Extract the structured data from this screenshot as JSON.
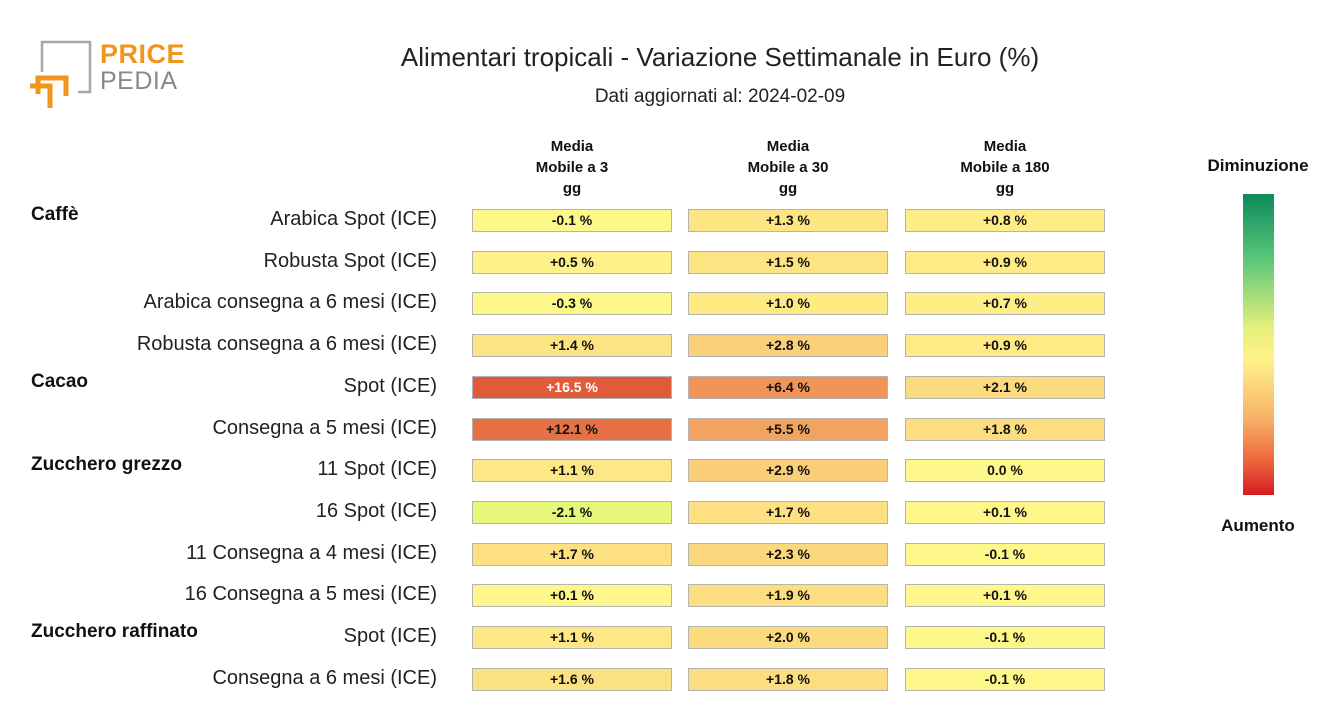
{
  "logo": {
    "word1": "PRICE",
    "word2": "PEDIA"
  },
  "title": "Alimentari tropicali - Variazione Settimanale in Euro (%)",
  "subtitle": "Dati aggiornati al: 2024-02-09",
  "chart_data": {
    "type": "table",
    "title": "Alimentari tropicali - Variazione Settimanale in Euro (%)",
    "subtitle": "Dati aggiornati al: 2024-02-09",
    "columns": [
      {
        "lines": [
          "Media",
          "Mobile a 3",
          "gg"
        ]
      },
      {
        "lines": [
          "Media",
          "Mobile a 30",
          "gg"
        ]
      },
      {
        "lines": [
          "Media",
          "Mobile a 180",
          "gg"
        ]
      }
    ],
    "groups": [
      {
        "name": "Caffè",
        "rows": [
          {
            "label": "Arabica Spot (ICE)",
            "values": [
              -0.1,
              1.3,
              0.8
            ],
            "display": [
              "-0.1 %",
              "+1.3 %",
              "+0.8 %"
            ]
          },
          {
            "label": "Robusta Spot (ICE)",
            "values": [
              0.5,
              1.5,
              0.9
            ],
            "display": [
              "+0.5 %",
              "+1.5 %",
              "+0.9 %"
            ]
          },
          {
            "label": "Arabica consegna a 6 mesi (ICE)",
            "values": [
              -0.3,
              1.0,
              0.7
            ],
            "display": [
              "-0.3 %",
              "+1.0 %",
              "+0.7 %"
            ]
          },
          {
            "label": "Robusta consegna a 6 mesi (ICE)",
            "values": [
              1.4,
              2.8,
              0.9
            ],
            "display": [
              "+1.4 %",
              "+2.8 %",
              "+0.9 %"
            ]
          }
        ]
      },
      {
        "name": "Cacao",
        "rows": [
          {
            "label": "Spot (ICE)",
            "values": [
              16.5,
              6.4,
              2.1
            ],
            "display": [
              "+16.5 %",
              "+6.4 %",
              "+2.1 %"
            ]
          },
          {
            "label": "Consegna a 5 mesi (ICE)",
            "values": [
              12.1,
              5.5,
              1.8
            ],
            "display": [
              "+12.1 %",
              "+5.5 %",
              "+1.8 %"
            ]
          }
        ]
      },
      {
        "name": "Zucchero grezzo",
        "rows": [
          {
            "label": "11 Spot (ICE)",
            "values": [
              1.1,
              2.9,
              0.0
            ],
            "display": [
              "+1.1 %",
              "+2.9 %",
              "0.0 %"
            ]
          },
          {
            "label": "16 Spot (ICE)",
            "values": [
              -2.1,
              1.7,
              0.1
            ],
            "display": [
              "-2.1 %",
              "+1.7 %",
              "+0.1 %"
            ]
          },
          {
            "label": "11 Consegna a 4 mesi (ICE)",
            "values": [
              1.7,
              2.3,
              -0.1
            ],
            "display": [
              "+1.7 %",
              "+2.3 %",
              "-0.1 %"
            ]
          },
          {
            "label": "16 Consegna a 5 mesi (ICE)",
            "values": [
              0.1,
              1.9,
              0.1
            ],
            "display": [
              "+0.1 %",
              "+1.9 %",
              "+0.1 %"
            ]
          }
        ]
      },
      {
        "name": "Zucchero raffinato",
        "rows": [
          {
            "label": "Spot (ICE)",
            "values": [
              1.1,
              2.0,
              -0.1
            ],
            "display": [
              "+1.1 %",
              "+2.0 %",
              "-0.1 %"
            ]
          },
          {
            "label": "Consegna a 6 mesi (ICE)",
            "values": [
              1.6,
              1.8,
              -0.1
            ],
            "display": [
              "+1.6 %",
              "+1.8 %",
              "-0.1 %"
            ]
          }
        ]
      }
    ],
    "legend": {
      "top": "Diminuzione",
      "bottom": "Aumento"
    }
  }
}
